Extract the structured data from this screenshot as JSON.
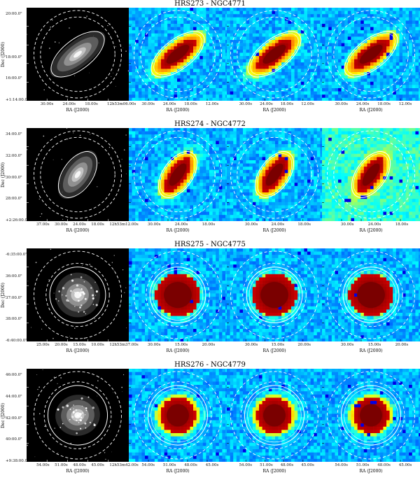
{
  "rows": [
    {
      "title": "HRS273 - NGC4771",
      "dec_label": "Dec (J2000)",
      "dec_ticks": [
        "20:00.0\"",
        "",
        "18:00.0\"",
        "16:00.0\"",
        "+1:14:00.0\""
      ],
      "ra_label": "RA (J2000)",
      "ra_ticks_optical": [
        "30.00s",
        "24.00s",
        "18.00s",
        "12h53m06.00s"
      ],
      "ra_ticks_ir": [
        "30.00s",
        "24.00s",
        "18.00s",
        "12.00s"
      ]
    },
    {
      "title": "HRS274 - NGC4772",
      "dec_label": "Dec (J2000)",
      "dec_ticks": [
        "34:00.0\"",
        "32:00.0\"",
        "30:00.0\"",
        "28:00.0\"",
        "+2:26:00.0\""
      ],
      "ra_label": "RA (J2000)",
      "ra_ticks_optical": [
        "37.00s",
        "30.00s",
        "24.00s",
        "18.00s",
        "12h53m12.00s"
      ],
      "ra_ticks_ir": [
        "30.00s",
        "24.00s",
        "18.00s"
      ]
    },
    {
      "title": "HRS275 - NGC4775",
      "dec_label": "Dec (J2000)",
      "dec_ticks": [
        "-6:35:00.0\"",
        "36:00.0\"",
        "37:00.0\"",
        "38:00.0\"",
        "-6:40:00.0\""
      ],
      "ra_label": "RA (J2000)",
      "ra_ticks_optical": [
        "25.00s",
        "20.00s",
        "15.00s",
        "10.00s",
        "12h53m37.00s"
      ],
      "ra_ticks_ir": [
        "30.00s",
        "15.00s",
        "20.00s"
      ]
    },
    {
      "title": "HRS276 - NGC4779",
      "dec_label": "Dec (J2000)",
      "dec_ticks": [
        "46:00.0\"",
        "44:00.0\"",
        "42:00.0\"",
        "40:00.0\"",
        "+9:38:00.0\""
      ],
      "ra_label": "RA (J2000)",
      "ra_ticks_optical": [
        "54.00s",
        "51.00s",
        "48.00s",
        "45.00s",
        "12h53m42.00s"
      ],
      "ra_ticks_ir": [
        "54.00s",
        "51.00s",
        "48.00s",
        "45.00s"
      ]
    }
  ],
  "colors": {
    "background": "#ffffff",
    "ir_base": "#3d8fd9",
    "source_peak": "#8b0000",
    "overlay": "#ffffff"
  }
}
